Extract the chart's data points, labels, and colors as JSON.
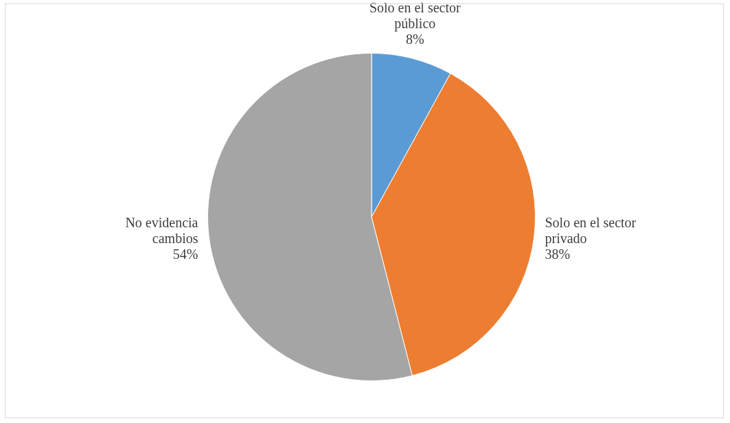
{
  "chart_data": {
    "type": "pie",
    "categories": [
      "Solo en el sector público",
      "Solo en el sector privado",
      "No evidencia cambios"
    ],
    "values": [
      8,
      38,
      54
    ],
    "colors": [
      "#5b9bd5",
      "#ed7d31",
      "#a5a5a5"
    ],
    "value_labels": [
      "8%",
      "38%",
      "54%"
    ],
    "legend": false
  }
}
